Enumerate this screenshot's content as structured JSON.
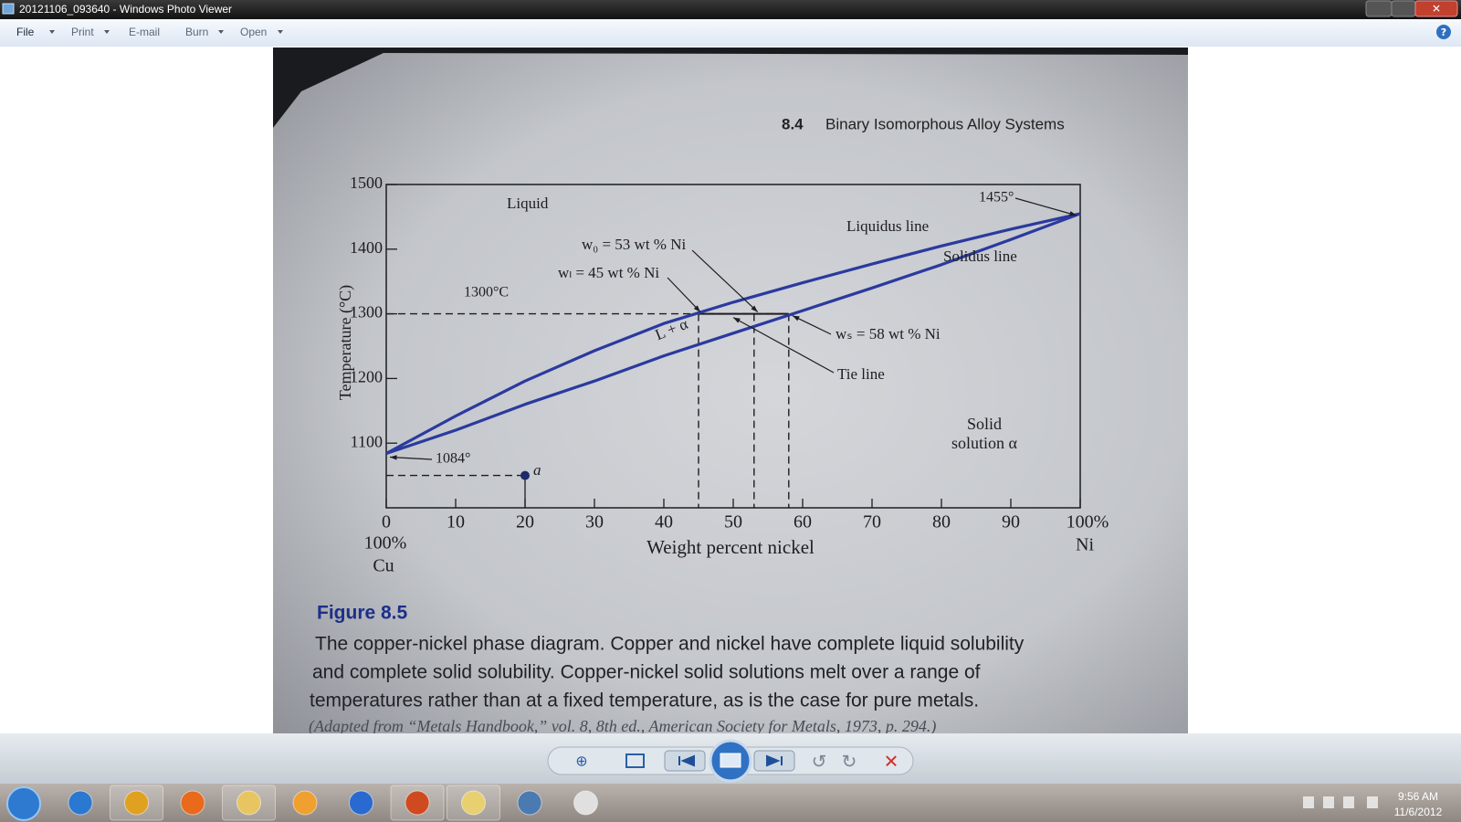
{
  "window": {
    "title": "20121106_093640 - Windows Photo Viewer",
    "menu": [
      "File",
      "Print",
      "E-mail",
      "Burn",
      "Open"
    ]
  },
  "photo": {
    "section_number": "8.4",
    "section_title": "Binary Isomorphous Alloy Systems",
    "figure_label": "Figure 8.5",
    "caption": [
      "The copper-nickel phase diagram. Copper and nickel have complete liquid solubility",
      "and complete solid solubility. Copper-nickel solid solutions melt over a range of",
      "temperatures rather than at a fixed temperature, as is the case for pure metals."
    ],
    "source": "(Adapted from “Metals Handbook,” vol. 8, 8th ed., American Society for Metals, 1973, p. 294.)"
  },
  "chart_data": {
    "type": "line",
    "x_label": "Weight percent nickel",
    "y_label": "Temperature (°C)",
    "xlim": [
      0,
      100
    ],
    "ylim": [
      1000,
      1500
    ],
    "xticks": [
      0,
      10,
      20,
      30,
      40,
      50,
      60,
      70,
      80,
      90,
      {
        "value": 100,
        "label": "100%"
      }
    ],
    "yticks": [
      1100,
      1200,
      1300,
      1400,
      1500
    ],
    "x": [
      0,
      10,
      20,
      30,
      40,
      50,
      60,
      70,
      80,
      90,
      100
    ],
    "series": [
      {
        "name": "Liquidus line",
        "color": "#2b3a9e",
        "values": [
          1084,
          1142,
          1196,
          1243,
          1285,
          1318,
          1348,
          1377,
          1405,
          1431,
          1455
        ]
      },
      {
        "name": "Solidus line",
        "color": "#2b3a9e",
        "values": [
          1084,
          1120,
          1160,
          1196,
          1235,
          1270,
          1305,
          1340,
          1376,
          1415,
          1455
        ]
      }
    ],
    "tie_line": {
      "temperature": 1300,
      "compositions": [
        45,
        53,
        58
      ]
    },
    "point": {
      "x": 20,
      "y": 1050
    },
    "annotations": {
      "liquid": "Liquid",
      "melting_ni": "1455°",
      "melting_cu": "1084°",
      "w0": "w₀ = 53 wt % Ni",
      "wl": "wₗ = 45 wt % Ni",
      "ws": "wₛ = 58 wt % Ni",
      "tie_line_label": "Tie line",
      "tie_temp_label": "1300°C",
      "two_phase": "L + α",
      "solid_1": "Solid",
      "solid_2": "solution α",
      "point_label": "a",
      "cu_pct": "100%",
      "cu": "Cu",
      "ni": "Ni"
    }
  },
  "taskbar": {
    "time": "9:56 AM",
    "date": "11/6/2012"
  }
}
